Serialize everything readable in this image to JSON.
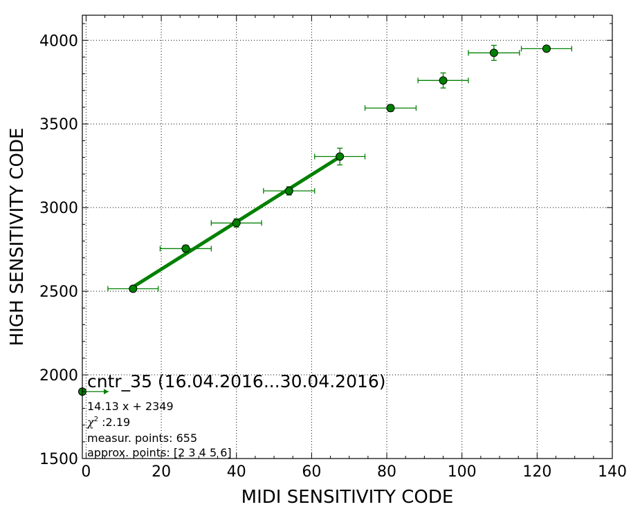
{
  "chart_data": {
    "type": "scatter",
    "xlabel": "MIDI SENSITIVITY CODE",
    "ylabel": "HIGH SENSITIVITY CODE",
    "xlim": [
      -1,
      140
    ],
    "ylim": [
      1500,
      4150
    ],
    "x_ticks": [
      0,
      20,
      40,
      60,
      80,
      100,
      120,
      140
    ],
    "y_ticks": [
      1500,
      2000,
      2500,
      3000,
      3500,
      4000
    ],
    "grid": true,
    "color": "#008000",
    "points": [
      {
        "x": -1,
        "y": 1900,
        "xerr_lo": 0,
        "xerr_hi": 7,
        "yerr": 0
      },
      {
        "x": 12.5,
        "y": 2515,
        "xerr_lo": 6.7,
        "xerr_hi": 6.7,
        "yerr": 10
      },
      {
        "x": 26.5,
        "y": 2755,
        "xerr_lo": 6.8,
        "xerr_hi": 6.8,
        "yerr": 20
      },
      {
        "x": 40,
        "y": 2908,
        "xerr_lo": 6.7,
        "xerr_hi": 6.7,
        "yerr": 25
      },
      {
        "x": 54,
        "y": 3100,
        "xerr_lo": 6.8,
        "xerr_hi": 6.8,
        "yerr": 25
      },
      {
        "x": 67.5,
        "y": 3305,
        "xerr_lo": 6.7,
        "xerr_hi": 6.7,
        "yerr": 50
      },
      {
        "x": 81,
        "y": 3595,
        "xerr_lo": 6.8,
        "xerr_hi": 6.8,
        "yerr": 20
      },
      {
        "x": 95,
        "y": 3760,
        "xerr_lo": 6.7,
        "xerr_hi": 6.7,
        "yerr": 45
      },
      {
        "x": 108.5,
        "y": 3925,
        "xerr_lo": 6.8,
        "xerr_hi": 6.8,
        "yerr": 45
      },
      {
        "x": 122.5,
        "y": 3950,
        "xerr_lo": 6.7,
        "xerr_hi": 6.7,
        "yerr": 10
      }
    ],
    "fit": {
      "slope": 14.13,
      "intercept": 2349,
      "x_range": [
        12.5,
        67.5
      ]
    },
    "annotation": {
      "title": "cntr_35 (16.04.2016...30.04.2016)",
      "equation": "14.13 x + 2349",
      "chi_symbol": "χ",
      "chi_sup": "2",
      "chi_value": " :2.19",
      "measur": "measur. points: 655",
      "approx": "approx. points: [2 3 4 5 6]"
    }
  }
}
